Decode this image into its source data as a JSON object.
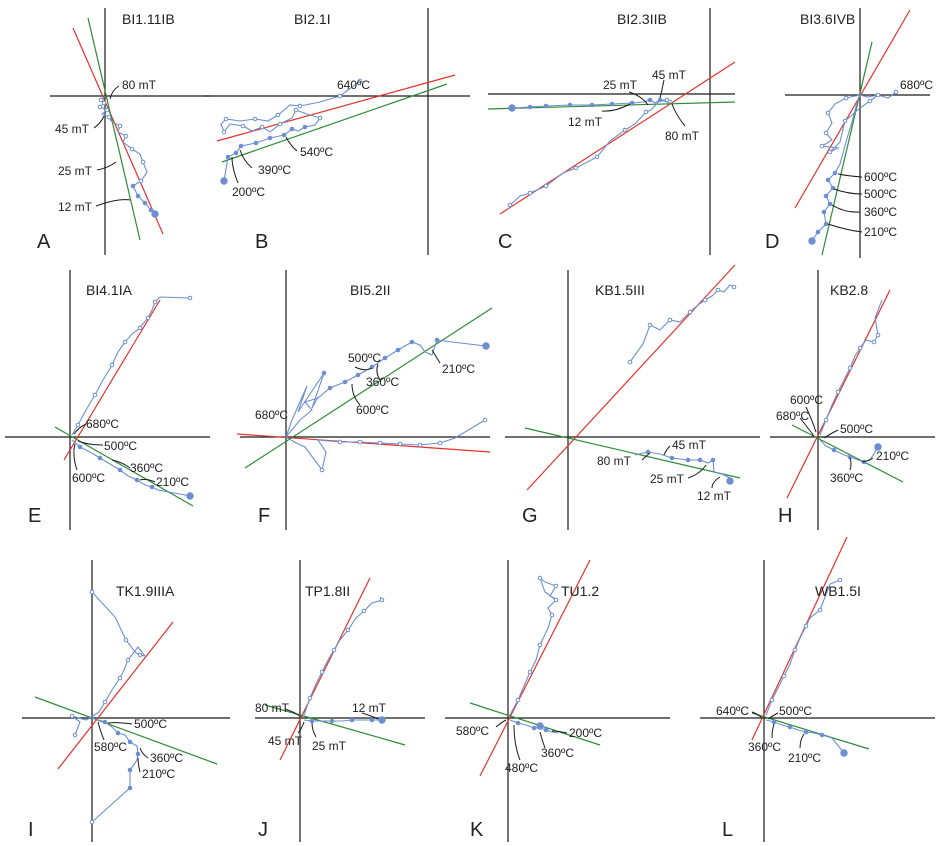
{
  "colors": {
    "path": "#6b8fd0",
    "fit_red": "#e8312a",
    "fit_green": "#2e8b3a",
    "axis": "#1a1a1a",
    "text": "#222222"
  },
  "panels": [
    {
      "letter": "A",
      "title": "BI1.11IB",
      "labels": [
        "80 mT",
        "45 mT",
        "25 mT",
        "12 mT"
      ]
    },
    {
      "letter": "B",
      "title": "BI2.1I",
      "labels": [
        "640ºC",
        "540ºC",
        "390ºC",
        "200ºC"
      ]
    },
    {
      "letter": "C",
      "title": "BI2.3IIB",
      "labels": [
        "25 mT",
        "45 mT",
        "12 mT",
        "80 mT"
      ]
    },
    {
      "letter": "D",
      "title": "BI3.6IVB",
      "labels": [
        "680ºC",
        "600ºC",
        "500ºC",
        "360ºC",
        "210ºC"
      ]
    },
    {
      "letter": "E",
      "title": "BI4.1IA",
      "labels": [
        "680ºC",
        "500ºC",
        "360ºC",
        "600ºC",
        "210ºC"
      ]
    },
    {
      "letter": "F",
      "title": "BI5.2II",
      "labels": [
        "500ºC",
        "210ºC",
        "360ºC",
        "680ºC",
        "600ºC"
      ]
    },
    {
      "letter": "G",
      "title": "KB1.5III",
      "labels": [
        "45 mT",
        "80 mT",
        "25 mT",
        "12 mT"
      ]
    },
    {
      "letter": "H",
      "title": "KB2.8",
      "labels": [
        "600ºC",
        "680ºC",
        "500ºC",
        "210ºC",
        "360ºC"
      ]
    },
    {
      "letter": "I",
      "title": "TK1.9IIIA",
      "labels": [
        "500ºC",
        "580ºC",
        "360ºC",
        "210ºC"
      ]
    },
    {
      "letter": "J",
      "title": "TP1.8II",
      "labels": [
        "80 mT",
        "12 mT",
        "45 mT",
        "25 mT"
      ]
    },
    {
      "letter": "K",
      "title": "TU1.2",
      "labels": [
        "580ºC",
        "200ºC",
        "360ºC",
        "480ºC"
      ]
    },
    {
      "letter": "L",
      "title": "WB1.5I",
      "labels": [
        "640ºC",
        "500ºC",
        "360ºC",
        "210ºC"
      ]
    }
  ]
}
